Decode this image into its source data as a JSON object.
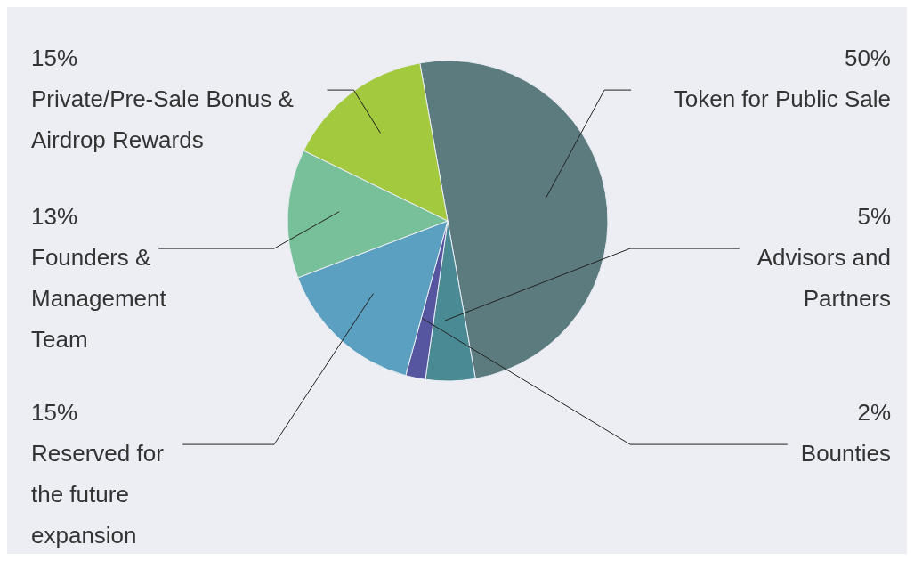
{
  "chart_data": {
    "type": "pie",
    "categories": [
      "Token for Public Sale",
      "Advisors and Partners",
      "Bounties",
      "Reserved for the future expansion",
      "Founders & Management Team",
      "Private/Pre-Sale Bonus & Airdrop Rewards"
    ],
    "values": [
      50,
      5,
      2,
      15,
      13,
      15
    ],
    "colors": [
      "#5c7b7e",
      "#4a8a94",
      "#5656a0",
      "#5ba0c0",
      "#78c09a",
      "#a3c93e"
    ],
    "value_labels": [
      "50%",
      "5%",
      "2%",
      "15%",
      "13%",
      "15%"
    ]
  }
}
